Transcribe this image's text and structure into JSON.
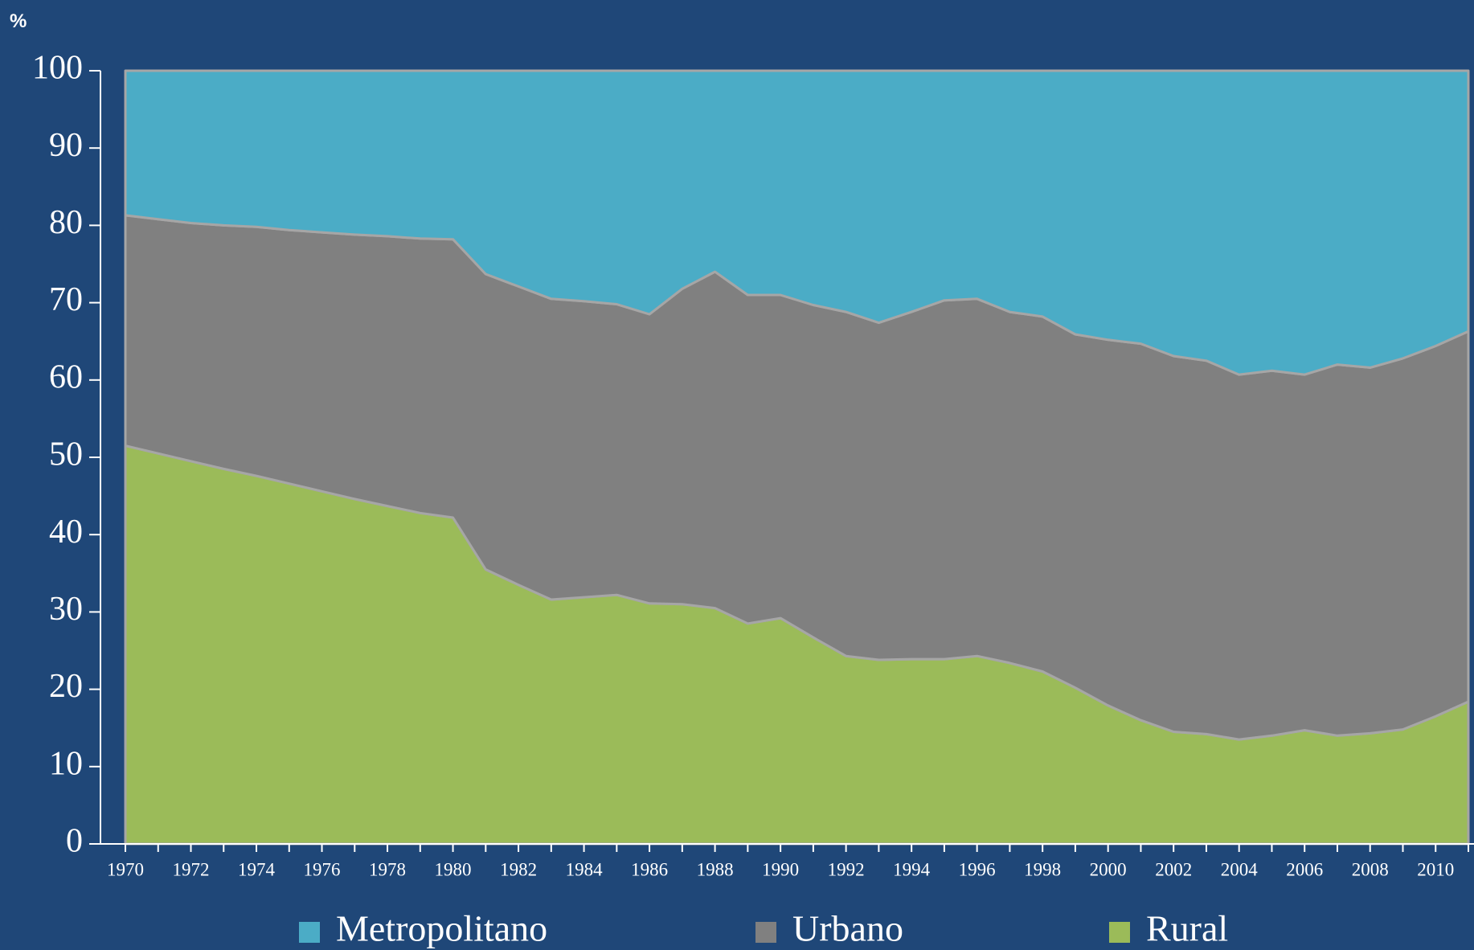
{
  "chart_data": {
    "type": "stacked-area",
    "y_label": "%",
    "categories": [
      "1970",
      null,
      "1972",
      null,
      "1974",
      null,
      "1976",
      null,
      "1978",
      null,
      "1980",
      null,
      "1982",
      null,
      "1984",
      null,
      "1986",
      null,
      "1988",
      null,
      "1990",
      null,
      "1992",
      null,
      "1994",
      null,
      "1996",
      null,
      "1998",
      null,
      "2000",
      null,
      "2002",
      null,
      "2004",
      null,
      "2006",
      null,
      "2008",
      null,
      "2010",
      null
    ],
    "series": [
      {
        "name": "Metropolitano",
        "color": "#4bacc6",
        "values": [
          18.7,
          19.2,
          19.7,
          20.0,
          20.2,
          20.6,
          20.9,
          21.2,
          21.4,
          21.7,
          21.8,
          26.3,
          27.9,
          29.5,
          29.8,
          30.2,
          31.5,
          28.2,
          26.0,
          29.0,
          29.0,
          30.3,
          31.2,
          32.6,
          31.2,
          29.7,
          29.5,
          31.2,
          31.8,
          34.1,
          34.8,
          35.3,
          36.9,
          37.5,
          39.3,
          38.8,
          39.3,
          38.0,
          38.4,
          37.2,
          35.6,
          33.7
        ]
      },
      {
        "name": "Urbano",
        "color": "#808080",
        "values": [
          29.8,
          30.3,
          30.8,
          31.5,
          32.2,
          32.8,
          33.5,
          34.2,
          34.9,
          35.5,
          36.0,
          38.2,
          38.6,
          38.9,
          38.3,
          37.6,
          37.4,
          40.8,
          43.5,
          42.5,
          41.8,
          43.0,
          44.5,
          43.6,
          44.9,
          46.4,
          46.2,
          45.4,
          45.9,
          45.7,
          47.3,
          48.7,
          48.6,
          48.3,
          47.2,
          47.2,
          46.0,
          48.0,
          47.3,
          48.0,
          47.9,
          47.9
        ]
      },
      {
        "name": "Rural",
        "color": "#9bbb59",
        "values": [
          51.5,
          50.5,
          49.5,
          48.5,
          47.6,
          46.6,
          45.6,
          44.6,
          43.7,
          42.8,
          42.2,
          35.5,
          33.5,
          31.6,
          31.9,
          32.2,
          31.1,
          31.0,
          30.5,
          28.5,
          29.2,
          26.7,
          24.3,
          23.8,
          23.9,
          23.9,
          24.3,
          23.4,
          22.3,
          20.2,
          17.9,
          16.0,
          14.5,
          14.2,
          13.5,
          14.0,
          14.7,
          14.0,
          14.3,
          14.8,
          16.5,
          18.4
        ]
      }
    ],
    "ylim": [
      0,
      100
    ],
    "yticks": [
      0,
      10,
      20,
      30,
      40,
      50,
      60,
      70,
      80,
      90,
      100
    ],
    "legend": "bottom"
  }
}
